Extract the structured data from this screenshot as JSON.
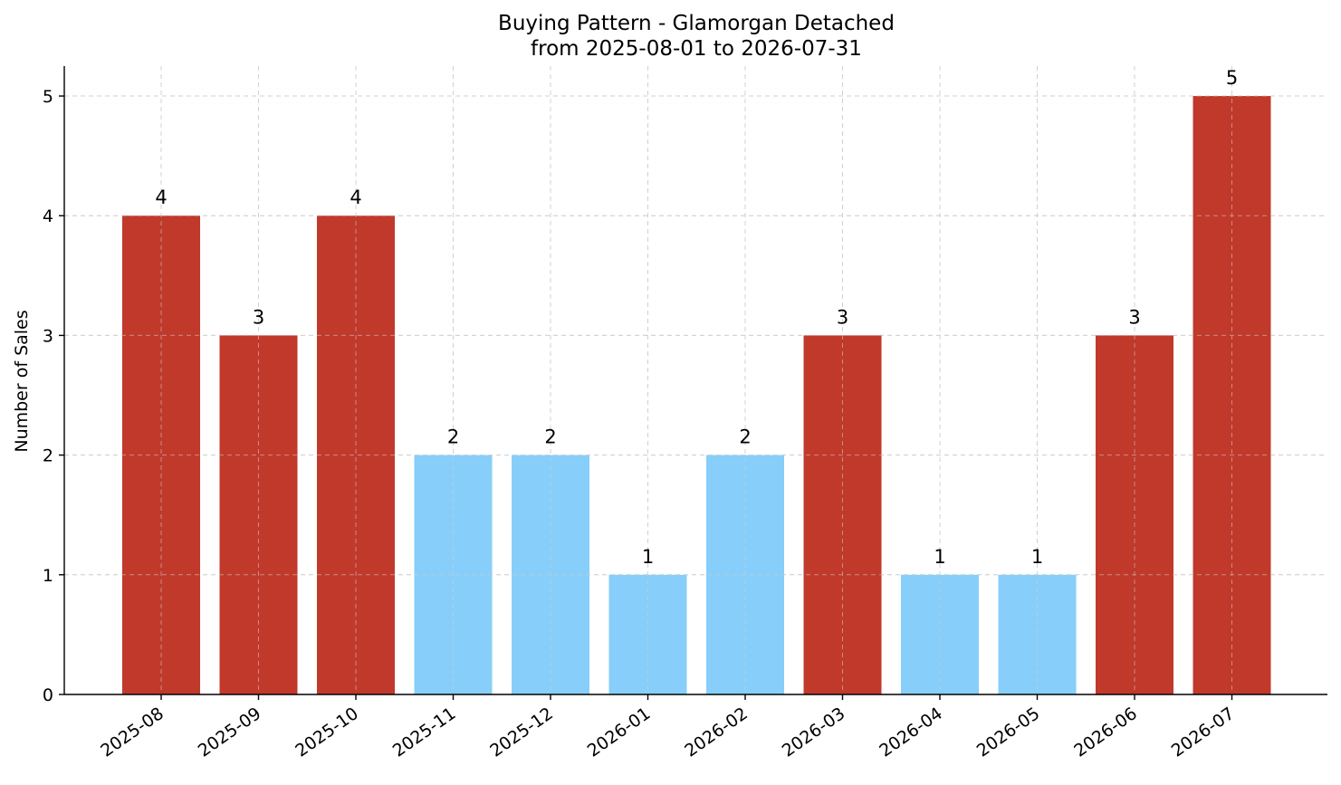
{
  "chart_data": {
    "type": "bar",
    "title": [
      "Buying Pattern - Glamorgan Detached",
      "from 2025-08-01 to 2026-07-31"
    ],
    "xlabel": "",
    "ylabel": "Number of Sales",
    "categories": [
      "2025-08",
      "2025-09",
      "2025-10",
      "2025-11",
      "2025-12",
      "2026-01",
      "2026-02",
      "2026-03",
      "2026-04",
      "2026-05",
      "2026-06",
      "2026-07"
    ],
    "values": [
      4,
      3,
      4,
      2,
      2,
      1,
      2,
      3,
      1,
      1,
      3,
      5
    ],
    "bar_colors": [
      "#c0392b",
      "#c0392b",
      "#c0392b",
      "#87cefa",
      "#87cefa",
      "#87cefa",
      "#87cefa",
      "#c0392b",
      "#87cefa",
      "#87cefa",
      "#c0392b",
      "#c0392b"
    ],
    "ylim": [
      0,
      5.25
    ],
    "yticks": [
      0,
      1,
      2,
      3,
      4,
      5
    ],
    "grid": true,
    "data_labels": true
  }
}
